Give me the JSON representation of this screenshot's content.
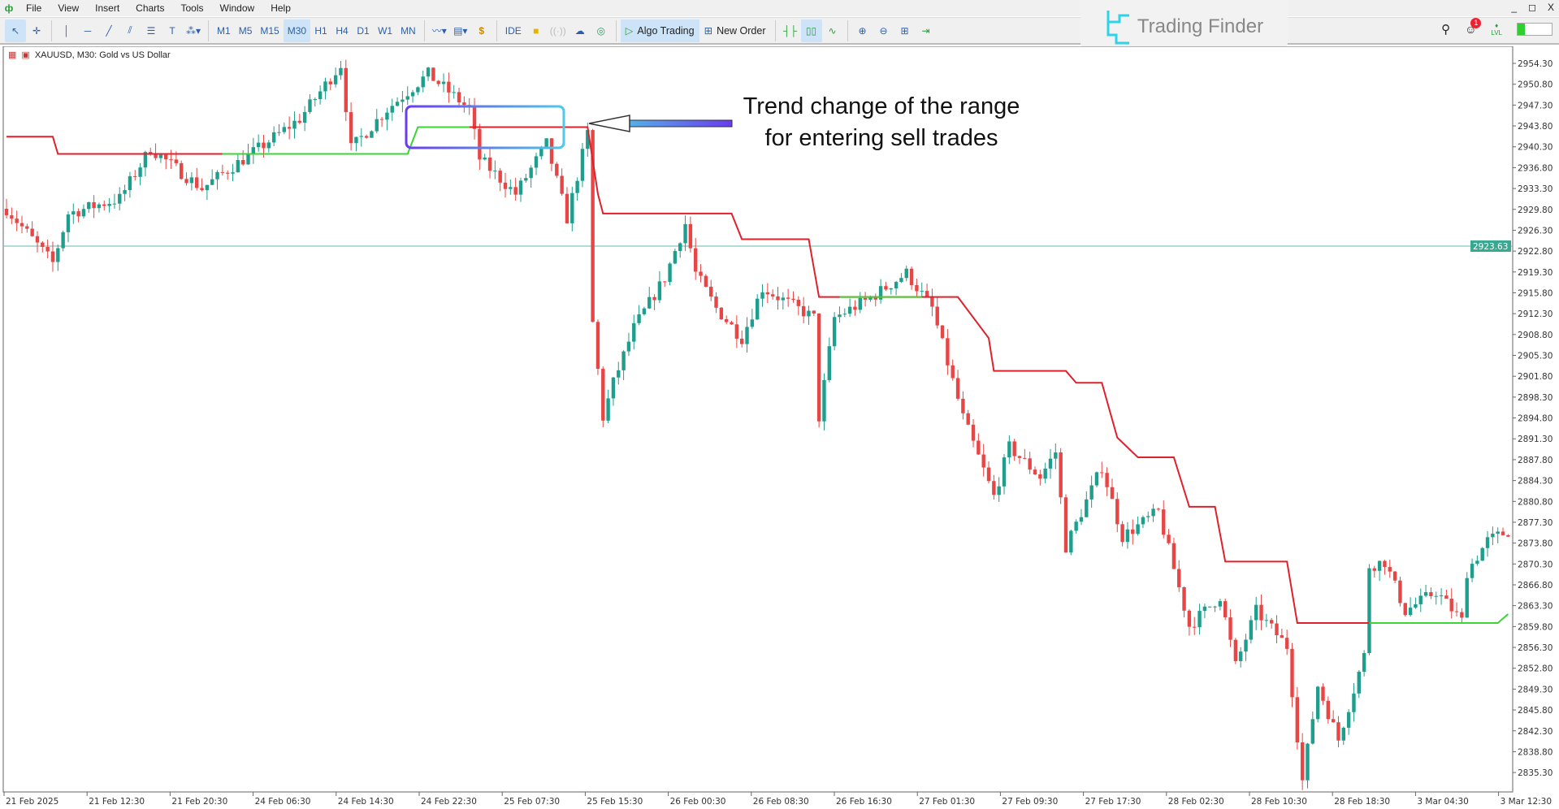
{
  "menu": {
    "items": [
      "File",
      "View",
      "Insert",
      "Charts",
      "Tools",
      "Window",
      "Help"
    ]
  },
  "window_controls": [
    "_",
    "◻",
    "X"
  ],
  "toolbar": {
    "timeframes": [
      "M1",
      "M5",
      "M15",
      "M30",
      "H1",
      "H4",
      "D1",
      "W1",
      "MN"
    ],
    "active_timeframe": "M30",
    "ide_label": "IDE",
    "algo_trading_label": "Algo Trading",
    "new_order_label": "New Order",
    "notification_count": "1",
    "signal_label": "LVL"
  },
  "brand": {
    "name": "Trading Finder"
  },
  "chart": {
    "symbol_info": "XAUUSD, M30:  Gold vs US Dollar",
    "current_price": "2923.63",
    "price_labels": [
      "2954.30",
      "2950.80",
      "2947.30",
      "2943.80",
      "2940.30",
      "2936.80",
      "2933.30",
      "2929.80",
      "2926.30",
      "2922.80",
      "2919.30",
      "2915.80",
      "2912.30",
      "2908.80",
      "2905.30",
      "2901.80",
      "2898.30",
      "2894.80",
      "2891.30",
      "2887.80",
      "2884.30",
      "2880.80",
      "2877.30",
      "2873.80",
      "2870.30",
      "2866.80",
      "2863.30",
      "2859.80",
      "2856.30",
      "2852.80",
      "2849.30",
      "2845.80",
      "2842.30",
      "2838.80",
      "2835.30"
    ],
    "time_labels": [
      "21 Feb 2025",
      "21 Feb 12:30",
      "21 Feb 20:30",
      "24 Feb 06:30",
      "24 Feb 14:30",
      "24 Feb 22:30",
      "25 Feb 07:30",
      "25 Feb 15:30",
      "26 Feb 00:30",
      "26 Feb 08:30",
      "26 Feb 16:30",
      "27 Feb 01:30",
      "27 Feb 09:30",
      "27 Feb 17:30",
      "28 Feb 02:30",
      "28 Feb 10:30",
      "28 Feb 18:30",
      "3 Mar 04:30",
      "3 Mar 12:30"
    ],
    "colors": {
      "bull": "#1e9e8c",
      "bear": "#e84545",
      "indicator_bear": "#e0202a",
      "indicator_bull": "#3bd636",
      "price_line": "#5fb8a8"
    },
    "annotation": {
      "line1": "Trend change of the range",
      "line2": "for entering sell trades"
    }
  },
  "chart_data": {
    "type": "candlestick",
    "price_range": [
      2833.5,
      2957
    ],
    "price_path": [
      [
        0,
        2929.9
      ],
      [
        9,
        2920.8
      ],
      [
        12,
        2929.1
      ],
      [
        22,
        2931.6
      ],
      [
        28,
        2940
      ],
      [
        38,
        2933.3
      ],
      [
        42,
        2935.8
      ],
      [
        49,
        2940
      ],
      [
        57,
        2945
      ],
      [
        65,
        2954.1
      ],
      [
        67,
        2940
      ],
      [
        74,
        2946.6
      ],
      [
        82,
        2952.5
      ],
      [
        90,
        2946.6
      ],
      [
        92,
        2938.3
      ],
      [
        99,
        2932.4
      ],
      [
        105,
        2940.8
      ],
      [
        109,
        2928.3
      ],
      [
        113,
        2942.5
      ],
      [
        114,
        2910.7
      ],
      [
        116,
        2894.9
      ],
      [
        118,
        2900.7
      ],
      [
        122,
        2909.9
      ],
      [
        128,
        2918.3
      ],
      [
        132,
        2927.4
      ],
      [
        134,
        2919.1
      ],
      [
        138,
        2913.2
      ],
      [
        143,
        2908.2
      ],
      [
        147,
        2916.6
      ],
      [
        157,
        2911.6
      ],
      [
        158,
        2894.9
      ],
      [
        161,
        2911.6
      ],
      [
        168,
        2914.9
      ],
      [
        175,
        2919.1
      ],
      [
        180,
        2913.2
      ],
      [
        186,
        2894.9
      ],
      [
        192,
        2881.6
      ],
      [
        195,
        2889.9
      ],
      [
        201,
        2884.9
      ],
      [
        204,
        2889.1
      ],
      [
        206,
        2873.2
      ],
      [
        213,
        2886.6
      ],
      [
        217,
        2874.9
      ],
      [
        224,
        2879.1
      ],
      [
        230,
        2859.9
      ],
      [
        236,
        2864.9
      ],
      [
        239,
        2853.2
      ],
      [
        243,
        2862.4
      ],
      [
        249,
        2856.5
      ],
      [
        252,
        2833.9
      ],
      [
        255,
        2849.9
      ],
      [
        259,
        2840.8
      ],
      [
        264,
        2854.9
      ],
      [
        265,
        2870
      ],
      [
        268,
        2870.7
      ],
      [
        272,
        2862.4
      ],
      [
        278,
        2865.7
      ],
      [
        283,
        2860.7
      ],
      [
        284,
        2869
      ],
      [
        288,
        2874.2
      ],
      [
        292,
        2875.8
      ]
    ],
    "indicator": [
      {
        "color": "bear",
        "points": [
          [
            0,
            2942
          ],
          [
            9,
            2942
          ],
          [
            10,
            2939.1
          ],
          [
            42,
            2939.1
          ]
        ]
      },
      {
        "color": "bull",
        "points": [
          [
            42,
            2939.1
          ],
          [
            78,
            2939.1
          ],
          [
            80,
            2943.6
          ],
          [
            90,
            2943.6
          ]
        ]
      },
      {
        "color": "bear",
        "points": [
          [
            90,
            2943.6
          ],
          [
            113,
            2943.6
          ],
          [
            115,
            2932.4
          ],
          [
            116,
            2929.1
          ],
          [
            141,
            2929.1
          ],
          [
            143,
            2924.8
          ],
          [
            156,
            2924.8
          ],
          [
            158,
            2915.1
          ],
          [
            185,
            2915.1
          ],
          [
            191,
            2908.2
          ],
          [
            192,
            2902.7
          ],
          [
            206,
            2902.7
          ],
          [
            208,
            2900.7
          ],
          [
            213,
            2900.7
          ],
          [
            216,
            2891.5
          ],
          [
            220,
            2888.2
          ],
          [
            227,
            2888.2
          ],
          [
            230,
            2879.9
          ],
          [
            235,
            2879.9
          ],
          [
            237,
            2870.7
          ],
          [
            249,
            2870.7
          ],
          [
            251,
            2860.4
          ],
          [
            265,
            2860.4
          ]
        ]
      },
      {
        "color": "bull",
        "points": [
          [
            162,
            2915.1
          ],
          [
            178,
            2915.1
          ]
        ]
      },
      {
        "color": "bull",
        "points": [
          [
            265,
            2860.4
          ],
          [
            290,
            2860.4
          ],
          [
            292,
            2861.9
          ]
        ]
      }
    ]
  }
}
